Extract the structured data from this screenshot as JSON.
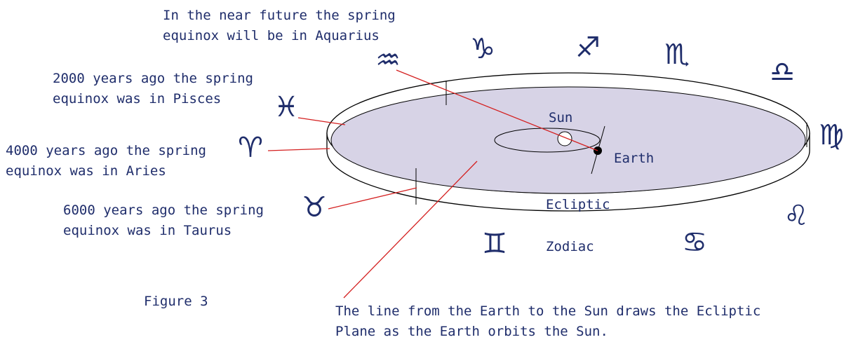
{
  "annotations": {
    "aquarius": [
      "In the near future the spring",
      "equinox will be in Aquarius"
    ],
    "pisces": [
      "2000 years ago the spring",
      "equinox was in Pisces"
    ],
    "aries": [
      "4000 years ago the spring",
      "equinox was in Aries"
    ],
    "taurus": [
      "6000 years ago the spring",
      "equinox was in Taurus"
    ],
    "ecliptic_note": [
      "The line from the Earth to the Sun draws the Ecliptic",
      "Plane as the Earth orbits the Sun."
    ]
  },
  "labels": {
    "sun": "Sun",
    "earth": "Earth",
    "ecliptic": "Ecliptic",
    "zodiac": "Zodiac",
    "figure": "Figure 3"
  },
  "symbols": [
    "♒",
    "♑",
    "♐",
    "♏",
    "♎",
    "♍",
    "♌",
    "♋",
    "♊",
    "♉",
    "♈",
    "♓"
  ]
}
